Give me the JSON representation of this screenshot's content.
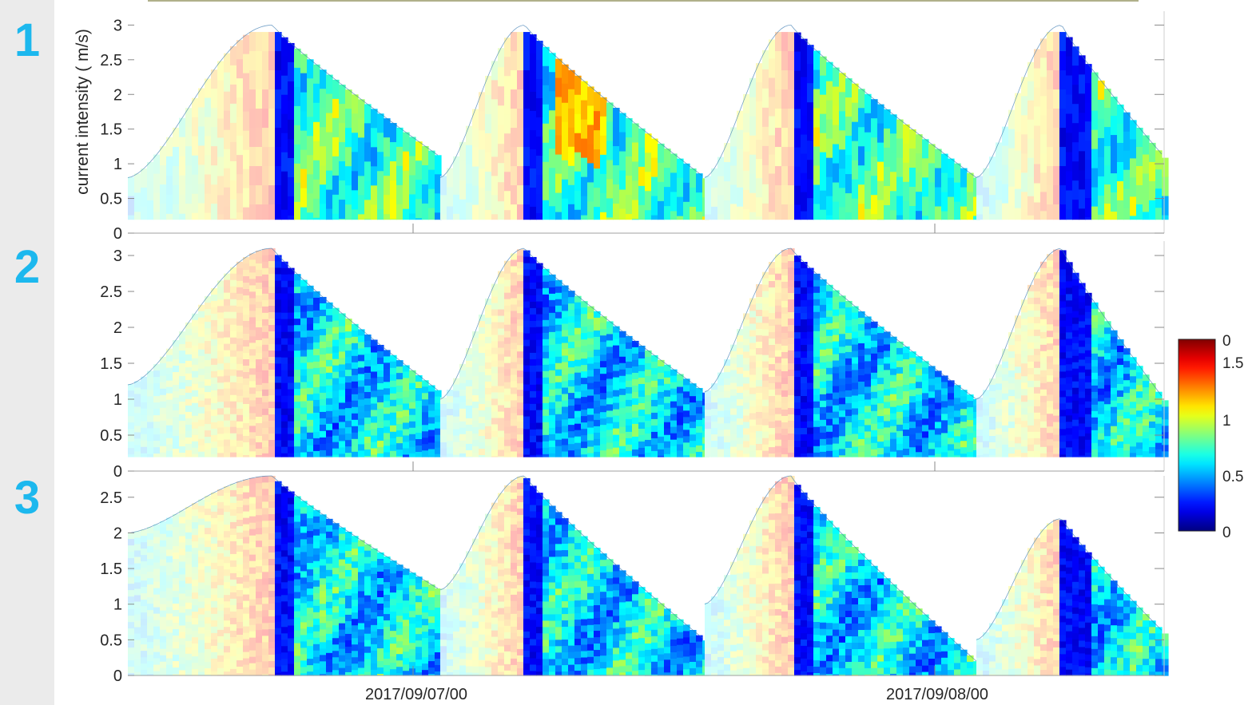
{
  "panel_numbers": [
    "1",
    "2",
    "3"
  ],
  "chart_data": {
    "type": "heatmap",
    "ylabel": "current intensity ( m/s)",
    "x_tick_labels": [
      "2017/09/07/00",
      "2017/09/08/00"
    ],
    "colorbar": {
      "colormap": "jet",
      "range": [
        0,
        1.5
      ],
      "tick_labels": [
        "0",
        "0.5",
        "1",
        "1.5"
      ],
      "clipped_top_label": "0"
    },
    "panels": [
      {
        "number": "1",
        "ylim": [
          0,
          3.2
        ],
        "y_ticks": [
          0,
          0.5,
          1,
          1.5,
          2,
          2.5,
          3
        ],
        "y_tick_labels": [
          "0",
          "0.5",
          "1",
          "1.5",
          "2",
          "2.5",
          "3"
        ],
        "tide_cycles": [
          {
            "low_left": 0.8,
            "peak": 3.0,
            "low_right": 1.1,
            "dark_band": 0.38
          },
          {
            "low_left": 0.8,
            "peak": 3.0,
            "low_right": 0.8,
            "dark_band": 0.32
          },
          {
            "low_left": 0.8,
            "peak": 3.0,
            "low_right": 0.8,
            "dark_band": 0.32
          },
          {
            "low_left": 0.8,
            "peak": 3.0,
            "low_right": 1.1,
            "dark_band": 0.45
          }
        ]
      },
      {
        "number": "2",
        "ylim": [
          0,
          3.2
        ],
        "y_ticks": [
          0,
          0.5,
          1,
          1.5,
          2,
          2.5,
          3
        ],
        "y_tick_labels": [
          "0",
          "0.5",
          "1",
          "1.5",
          "2",
          "2.5",
          "3"
        ],
        "tide_cycles": [
          {
            "low_left": 1.2,
            "peak": 3.1,
            "low_right": 1.1,
            "dark_band": 0.38
          },
          {
            "low_left": 1.0,
            "peak": 3.1,
            "low_right": 1.1,
            "dark_band": 0.32
          },
          {
            "low_left": 1.1,
            "peak": 3.1,
            "low_right": 1.0,
            "dark_band": 0.32
          },
          {
            "low_left": 1.0,
            "peak": 3.1,
            "low_right": 1.0,
            "dark_band": 0.45
          }
        ]
      },
      {
        "number": "3",
        "ylim": [
          0,
          2.8
        ],
        "y_ticks": [
          0,
          0.5,
          1,
          1.5,
          2,
          2.5
        ],
        "y_tick_labels": [
          "0",
          "0.5",
          "1",
          "1.5",
          "2",
          "2.5"
        ],
        "tide_cycles": [
          {
            "low_left": 2.0,
            "peak": 2.8,
            "low_right": 1.2,
            "dark_band": 0.38
          },
          {
            "low_left": 1.2,
            "peak": 2.8,
            "low_right": 0.5,
            "dark_band": 0.32
          },
          {
            "low_left": 1.0,
            "peak": 2.8,
            "low_right": 0.2,
            "dark_band": 0.32
          },
          {
            "low_left": 0.5,
            "peak": 2.2,
            "low_right": 0.6,
            "dark_band": 0.45
          }
        ]
      }
    ]
  }
}
